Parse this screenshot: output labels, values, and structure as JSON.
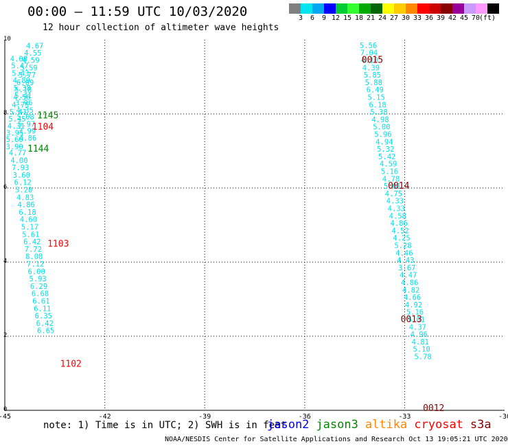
{
  "title": "00:00 – 11:59 UTC 10/03/2020",
  "subtitle": "12 hour collection of altimeter wave heights",
  "color_scale": {
    "colors": [
      "#808080",
      "#00e5ee",
      "#00a8f0",
      "#0000ff",
      "#00cc33",
      "#33ff33",
      "#00aa00",
      "#006600",
      "#ffff00",
      "#ffcc00",
      "#ff8800",
      "#ff0000",
      "#cc0000",
      "#880000",
      "#990099",
      "#cc99ff",
      "#ff99ff",
      "#000000"
    ],
    "labels": [
      "3",
      "6",
      "9",
      "12",
      "15",
      "18",
      "21",
      "24",
      "27",
      "30",
      "33",
      "36",
      "39",
      "42",
      "45",
      "70",
      "(ft)"
    ]
  },
  "axes": {
    "x_ticks": [
      "-45",
      "-42",
      "-39",
      "-36",
      "-33",
      "-30"
    ],
    "x_range": [
      -45,
      -30
    ],
    "y_ticks": [
      "0",
      "2",
      "4",
      "6",
      "8",
      "10"
    ],
    "y_range": [
      0,
      10
    ]
  },
  "note": "note: 1) Time is in UTC; 2) SWH is in feet",
  "legend": [
    {
      "label": "jason2",
      "color": "#0000ff"
    },
    {
      "label": "jason3",
      "color": "#008800"
    },
    {
      "label": "altika",
      "color": "#ff8800"
    },
    {
      "label": "cryosat",
      "color": "#ff0000"
    },
    {
      "label": "s3a",
      "color": "#880000"
    }
  ],
  "footer": "NOAA/NESDIS Center for Satellite Applications and Research    Oct 13 19:05:21 UTC 2020",
  "map_data": {
    "wave_heights": [
      {
        "lon": -44.36,
        "lat": 9.77,
        "v": "4.67"
      },
      {
        "lon": -44.42,
        "lat": 9.57,
        "v": "4.55"
      },
      {
        "lon": -44.48,
        "lat": 9.38,
        "v": "4.59"
      },
      {
        "lon": -44.54,
        "lat": 9.18,
        "v": "5.59"
      },
      {
        "lon": -44.59,
        "lat": 8.98,
        "v": "5.77"
      },
      {
        "lon": -44.65,
        "lat": 8.78,
        "v": "6.69"
      },
      {
        "lon": -44.71,
        "lat": 8.58,
        "v": "5.18"
      },
      {
        "lon": -44.75,
        "lat": 8.38,
        "v": "4.56"
      },
      {
        "lon": -44.79,
        "lat": 8.18,
        "v": "4.75"
      },
      {
        "lon": -44.86,
        "lat": 7.98,
        "v": "5.41"
      },
      {
        "lon": -44.89,
        "lat": 7.8,
        "v": "5.45"
      },
      {
        "lon": -44.92,
        "lat": 7.6,
        "v": "4.31"
      },
      {
        "lon": -44.96,
        "lat": 7.42,
        "v": "3.95"
      },
      {
        "lon": -44.97,
        "lat": 7.24,
        "v": "5.60"
      },
      {
        "lon": -44.97,
        "lat": 7.05,
        "v": "3.90"
      },
      {
        "lon": -44.88,
        "lat": 6.88,
        "v": "4.77"
      },
      {
        "lon": -44.83,
        "lat": 6.68,
        "v": "4.00"
      },
      {
        "lon": -44.79,
        "lat": 6.48,
        "v": "7.93"
      },
      {
        "lon": -44.76,
        "lat": 6.28,
        "v": "3.60"
      },
      {
        "lon": -44.72,
        "lat": 6.08,
        "v": "6.12"
      },
      {
        "lon": -44.69,
        "lat": 5.88,
        "v": "5.20"
      },
      {
        "lon": -44.65,
        "lat": 5.68,
        "v": "4.83"
      },
      {
        "lon": -44.62,
        "lat": 5.48,
        "v": "4.86"
      },
      {
        "lon": -44.58,
        "lat": 5.28,
        "v": "6.18"
      },
      {
        "lon": -44.55,
        "lat": 5.08,
        "v": "4.60"
      },
      {
        "lon": -44.51,
        "lat": 4.88,
        "v": "5.17"
      },
      {
        "lon": -44.48,
        "lat": 4.68,
        "v": "5.61"
      },
      {
        "lon": -44.44,
        "lat": 4.48,
        "v": "6.42"
      },
      {
        "lon": -44.41,
        "lat": 4.28,
        "v": "7.72"
      },
      {
        "lon": -44.38,
        "lat": 4.08,
        "v": "8.08"
      },
      {
        "lon": -44.34,
        "lat": 3.88,
        "v": "7.12"
      },
      {
        "lon": -44.31,
        "lat": 3.68,
        "v": "6.00"
      },
      {
        "lon": -44.27,
        "lat": 3.48,
        "v": "5.93"
      },
      {
        "lon": -44.24,
        "lat": 3.28,
        "v": "6.29"
      },
      {
        "lon": -44.2,
        "lat": 3.08,
        "v": "6.68"
      },
      {
        "lon": -44.17,
        "lat": 2.88,
        "v": "6.61"
      },
      {
        "lon": -44.13,
        "lat": 2.68,
        "v": "6.11"
      },
      {
        "lon": -44.1,
        "lat": 2.48,
        "v": "6.35"
      },
      {
        "lon": -44.06,
        "lat": 2.28,
        "v": "6.42"
      },
      {
        "lon": -44.03,
        "lat": 2.08,
        "v": "6.65"
      },
      {
        "lon": -44.84,
        "lat": 9.42,
        "v": "4.08"
      },
      {
        "lon": -44.81,
        "lat": 9.23,
        "v": "5.47"
      },
      {
        "lon": -44.79,
        "lat": 9.03,
        "v": "5.43"
      },
      {
        "lon": -44.76,
        "lat": 8.83,
        "v": "4.89"
      },
      {
        "lon": -44.74,
        "lat": 8.63,
        "v": "5.38"
      },
      {
        "lon": -44.71,
        "lat": 8.43,
        "v": "5.41"
      },
      {
        "lon": -44.69,
        "lat": 8.23,
        "v": "3.96"
      },
      {
        "lon": -44.66,
        "lat": 8.03,
        "v": "4.35"
      },
      {
        "lon": -44.64,
        "lat": 7.85,
        "v": "5.08"
      },
      {
        "lon": -44.61,
        "lat": 7.66,
        "v": "5.97"
      },
      {
        "lon": -44.59,
        "lat": 7.47,
        "v": "3.99"
      },
      {
        "lon": -44.57,
        "lat": 7.28,
        "v": "4.86"
      },
      {
        "lon": -34.35,
        "lat": 9.78,
        "v": "5.56"
      },
      {
        "lon": -34.33,
        "lat": 9.58,
        "v": "7.04"
      },
      {
        "lon": -34.31,
        "lat": 9.38,
        "v": "4.10"
      },
      {
        "lon": -34.27,
        "lat": 9.18,
        "v": "4.39"
      },
      {
        "lon": -34.23,
        "lat": 8.98,
        "v": "5.85"
      },
      {
        "lon": -34.19,
        "lat": 8.78,
        "v": "5.88"
      },
      {
        "lon": -34.15,
        "lat": 8.58,
        "v": "6.49"
      },
      {
        "lon": -34.11,
        "lat": 8.38,
        "v": "5.15"
      },
      {
        "lon": -34.07,
        "lat": 8.18,
        "v": "6.18"
      },
      {
        "lon": -34.03,
        "lat": 7.98,
        "v": "5.38"
      },
      {
        "lon": -33.99,
        "lat": 7.78,
        "v": "4.98"
      },
      {
        "lon": -33.95,
        "lat": 7.58,
        "v": "5.00"
      },
      {
        "lon": -33.91,
        "lat": 7.38,
        "v": "5.96"
      },
      {
        "lon": -33.87,
        "lat": 7.18,
        "v": "4.94"
      },
      {
        "lon": -33.83,
        "lat": 6.98,
        "v": "5.32"
      },
      {
        "lon": -33.79,
        "lat": 6.78,
        "v": "5.42"
      },
      {
        "lon": -33.75,
        "lat": 6.58,
        "v": "4.59"
      },
      {
        "lon": -33.71,
        "lat": 6.38,
        "v": "5.16"
      },
      {
        "lon": -33.67,
        "lat": 6.18,
        "v": "4.78"
      },
      {
        "lon": -33.63,
        "lat": 5.98,
        "v": "5.01"
      },
      {
        "lon": -33.59,
        "lat": 5.78,
        "v": "4.75"
      },
      {
        "lon": -33.55,
        "lat": 5.58,
        "v": "4.33"
      },
      {
        "lon": -33.51,
        "lat": 5.38,
        "v": "4.33"
      },
      {
        "lon": -33.47,
        "lat": 5.18,
        "v": "4.58"
      },
      {
        "lon": -33.43,
        "lat": 4.98,
        "v": "4.86"
      },
      {
        "lon": -33.39,
        "lat": 4.78,
        "v": "4.52"
      },
      {
        "lon": -33.35,
        "lat": 4.58,
        "v": "4.25"
      },
      {
        "lon": -33.31,
        "lat": 4.38,
        "v": "5.28"
      },
      {
        "lon": -33.27,
        "lat": 4.18,
        "v": "4.46"
      },
      {
        "lon": -33.23,
        "lat": 3.98,
        "v": "4.43"
      },
      {
        "lon": -33.19,
        "lat": 3.78,
        "v": "3.67"
      },
      {
        "lon": -33.15,
        "lat": 3.58,
        "v": "4.47"
      },
      {
        "lon": -33.11,
        "lat": 3.38,
        "v": "4.86"
      },
      {
        "lon": -33.07,
        "lat": 3.18,
        "v": "4.82"
      },
      {
        "lon": -33.03,
        "lat": 2.98,
        "v": "4.66"
      },
      {
        "lon": -32.99,
        "lat": 2.78,
        "v": "4.92"
      },
      {
        "lon": -32.95,
        "lat": 2.58,
        "v": "5.16"
      },
      {
        "lon": -32.91,
        "lat": 2.38,
        "v": "5.01"
      },
      {
        "lon": -32.87,
        "lat": 2.18,
        "v": "4.37"
      },
      {
        "lon": -32.83,
        "lat": 1.98,
        "v": "4.96"
      },
      {
        "lon": -32.79,
        "lat": 1.78,
        "v": "4.81"
      },
      {
        "lon": -32.75,
        "lat": 1.58,
        "v": "5.10"
      },
      {
        "lon": -32.71,
        "lat": 1.38,
        "v": "5.78"
      }
    ],
    "time_labels": [
      {
        "lon": -44.03,
        "lat": 7.88,
        "text": "1145",
        "sat": "jason3"
      },
      {
        "lon": -44.18,
        "lat": 7.57,
        "text": "1104",
        "sat": "cryosat"
      },
      {
        "lon": -44.32,
        "lat": 6.98,
        "text": "1144",
        "sat": "jason3"
      },
      {
        "lon": -43.72,
        "lat": 4.42,
        "text": "1103",
        "sat": "cryosat"
      },
      {
        "lon": -43.34,
        "lat": 1.18,
        "text": "1102",
        "sat": "cryosat"
      },
      {
        "lon": -34.29,
        "lat": 9.38,
        "text": "0015",
        "sat": "s3a"
      },
      {
        "lon": -33.5,
        "lat": 5.98,
        "text": "0014",
        "sat": "s3a"
      },
      {
        "lon": -33.12,
        "lat": 2.38,
        "text": "0013",
        "sat": "s3a"
      },
      {
        "lon": -32.45,
        "lat": -0.02,
        "text": "0012",
        "sat": "s3a"
      }
    ]
  }
}
